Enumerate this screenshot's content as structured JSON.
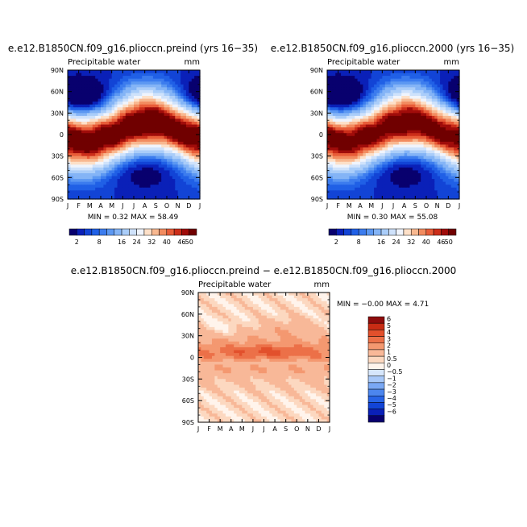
{
  "palette": {
    "abs": [
      "#08006e",
      "#0a20b8",
      "#1244d6",
      "#2060e6",
      "#3c7cee",
      "#5c98f2",
      "#84b4f6",
      "#aacdf9",
      "#cfe2fb",
      "#f0f4fc",
      "#fde0c8",
      "#f8b890",
      "#f28c60",
      "#e85c38",
      "#cc2e1a",
      "#a00c0a",
      "#700000"
    ],
    "diff": [
      "#08006e",
      "#0a20b8",
      "#1244d6",
      "#2864e6",
      "#4c86ee",
      "#7aa8f4",
      "#a8c8f8",
      "#d6e6fb",
      "#fff4ec",
      "#fcd8c0",
      "#f8b898",
      "#f49870",
      "#ec7048",
      "#e2502c",
      "#c82c14",
      "#8e0c0c"
    ]
  },
  "chart_data": [
    {
      "type": "heatmap",
      "id": "preind",
      "title": "e.e12.B1850CN.f09_g16.plioccn.preind (yrs 16−35)",
      "subtitle": "Precipitable water",
      "units": "mm",
      "x_ticks": [
        "J",
        "F",
        "M",
        "A",
        "M",
        "J",
        "J",
        "A",
        "S",
        "O",
        "N",
        "D",
        "J"
      ],
      "y_ticks": [
        "90N",
        "60N",
        "30N",
        "0",
        "30S",
        "60S",
        "90S"
      ],
      "stats": "MIN =    0.32  MAX =   58.49",
      "colorbar_labels": [
        "2",
        "8",
        "16",
        "24",
        "32",
        "40",
        "46",
        "50"
      ],
      "levels": [
        2,
        4,
        6,
        8,
        10,
        12,
        16,
        20,
        24,
        28,
        32,
        36,
        40,
        44,
        46,
        50
      ],
      "min": 0.32,
      "max": 58.49
    },
    {
      "type": "heatmap",
      "id": "y2000",
      "title": "e.e12.B1850CN.f09_g16.plioccn.2000 (yrs 16−35)",
      "subtitle": "Precipitable water",
      "units": "mm",
      "x_ticks": [
        "J",
        "F",
        "M",
        "A",
        "M",
        "J",
        "J",
        "A",
        "S",
        "O",
        "N",
        "D",
        "J"
      ],
      "y_ticks": [
        "90N",
        "60N",
        "30N",
        "0",
        "30S",
        "60S",
        "90S"
      ],
      "stats": "MIN =    0.30  MAX =   55.08",
      "colorbar_labels": [
        "2",
        "8",
        "16",
        "24",
        "32",
        "40",
        "46",
        "50"
      ],
      "levels": [
        2,
        4,
        6,
        8,
        10,
        12,
        16,
        20,
        24,
        28,
        32,
        36,
        40,
        44,
        46,
        50
      ],
      "min": 0.3,
      "max": 55.08
    },
    {
      "type": "heatmap",
      "id": "diff",
      "title": "e.e12.B1850CN.f09_g16.plioccn.preind − e.e12.B1850CN.f09_g16.plioccn.2000",
      "subtitle": "Precipitable water",
      "units": "mm",
      "x_ticks": [
        "J",
        "F",
        "M",
        "A",
        "M",
        "J",
        "J",
        "A",
        "S",
        "O",
        "N",
        "D",
        "J"
      ],
      "y_ticks": [
        "90N",
        "60N",
        "30N",
        "0",
        "30S",
        "60S",
        "90S"
      ],
      "stats": "MIN =   −0.00  MAX =    4.71",
      "colorbar_labels": [
        "6",
        "5",
        "4",
        "3",
        "2",
        "1",
        "0.5",
        "0",
        "−0.5",
        "−1",
        "−2",
        "−3",
        "−4",
        "−5",
        "−6"
      ],
      "levels": [
        -6,
        -5,
        -4,
        -3,
        -2,
        -1,
        -0.5,
        0,
        0.5,
        1,
        2,
        3,
        4,
        5,
        6
      ],
      "min": 0.0,
      "max": 4.71
    }
  ]
}
